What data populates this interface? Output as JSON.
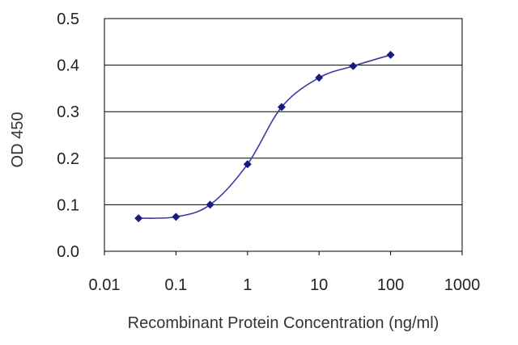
{
  "chart_data": {
    "type": "line",
    "xlabel": "Recombinant Protein Concentration (ng/ml)",
    "ylabel": "OD 450",
    "x_scale": "log",
    "xlim": [
      0.01,
      1000
    ],
    "ylim": [
      0.0,
      0.5
    ],
    "x_ticks": [
      "0.01",
      "0.1",
      "1",
      "10",
      "100",
      "1000"
    ],
    "y_ticks": [
      "0.0",
      "0.1",
      "0.2",
      "0.3",
      "0.4",
      "0.5"
    ],
    "grid": "horizontal",
    "colors": {
      "series": "#3a3aa0",
      "marker": "#1a1a80",
      "grid": "#000000"
    },
    "series": [
      {
        "x": [
          0.03,
          0.1,
          0.3,
          1,
          3,
          10,
          30,
          100
        ],
        "y": [
          0.071,
          0.074,
          0.1,
          0.187,
          0.31,
          0.373,
          0.398,
          0.422
        ]
      }
    ]
  }
}
